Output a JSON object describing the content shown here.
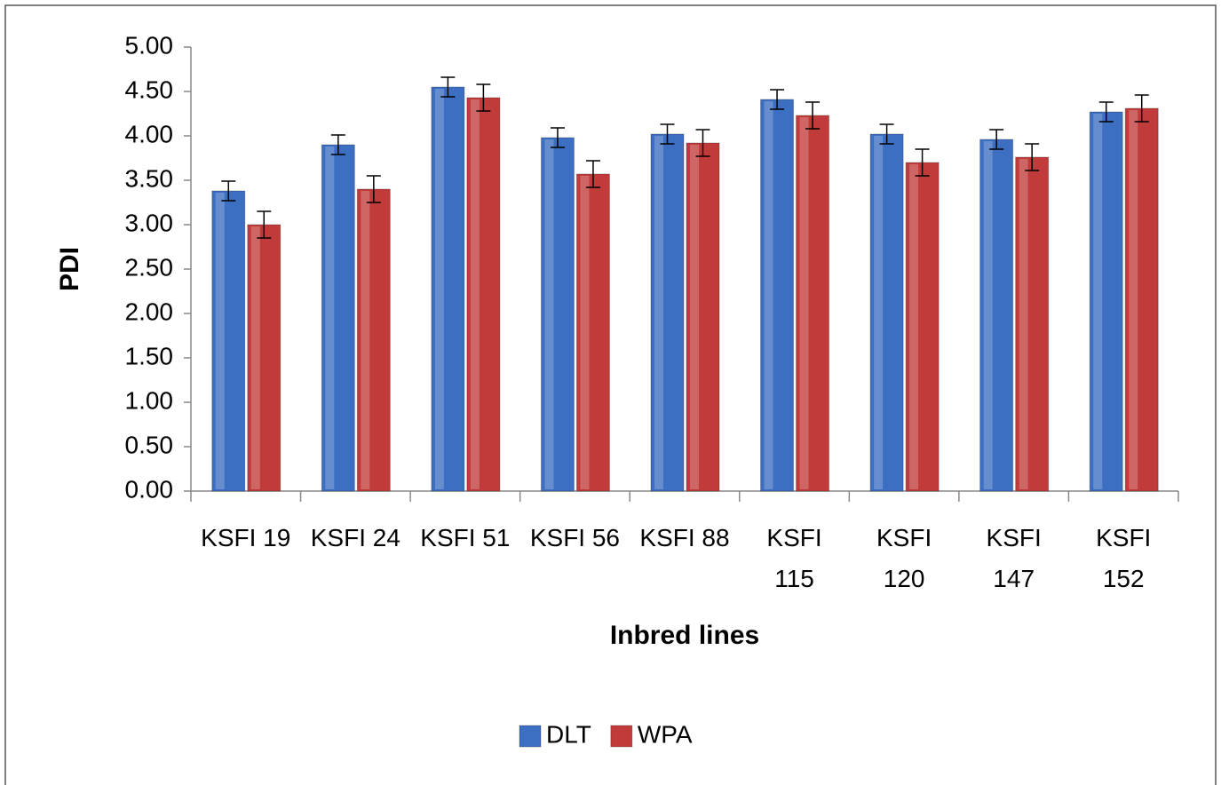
{
  "chart_data": {
    "type": "bar",
    "x_label": "Inbred lines",
    "y_label": "PDI",
    "categories": [
      "KSFI 19",
      "KSFI 24",
      "KSFI 51",
      "KSFI 56",
      "KSFI 88",
      "KSFI 115",
      "KSFI 120",
      "KSFI 147",
      "KSFI 152"
    ],
    "series": [
      {
        "name": "DLT",
        "color": "#3c6fc2",
        "values": [
          3.38,
          3.9,
          4.55,
          3.98,
          4.02,
          4.41,
          4.02,
          3.96,
          4.27
        ],
        "errors": [
          0.11,
          0.11,
          0.11,
          0.11,
          0.11,
          0.11,
          0.11,
          0.11,
          0.11
        ]
      },
      {
        "name": "WPA",
        "color": "#c23b3b",
        "values": [
          3.0,
          3.4,
          4.43,
          3.57,
          3.92,
          4.23,
          3.7,
          3.76,
          4.31
        ],
        "errors": [
          0.15,
          0.15,
          0.15,
          0.15,
          0.15,
          0.15,
          0.15,
          0.15,
          0.15
        ]
      }
    ],
    "ylim": [
      0,
      5
    ],
    "yticks": [
      {
        "value": 0,
        "label": "0.00"
      },
      {
        "value": 0.5,
        "label": "0.50"
      },
      {
        "value": 1,
        "label": "1.00"
      },
      {
        "value": 1.5,
        "label": "1.50"
      },
      {
        "value": 2,
        "label": "2.00"
      },
      {
        "value": 2.5,
        "label": "2.50"
      },
      {
        "value": 3,
        "label": "3.00"
      },
      {
        "value": 3.5,
        "label": "3.50"
      },
      {
        "value": 4,
        "label": "4.00"
      },
      {
        "value": 4.5,
        "label": "4.50"
      },
      {
        "value": 5,
        "label": "5.00"
      }
    ],
    "grid": false,
    "legend": "bottom"
  }
}
